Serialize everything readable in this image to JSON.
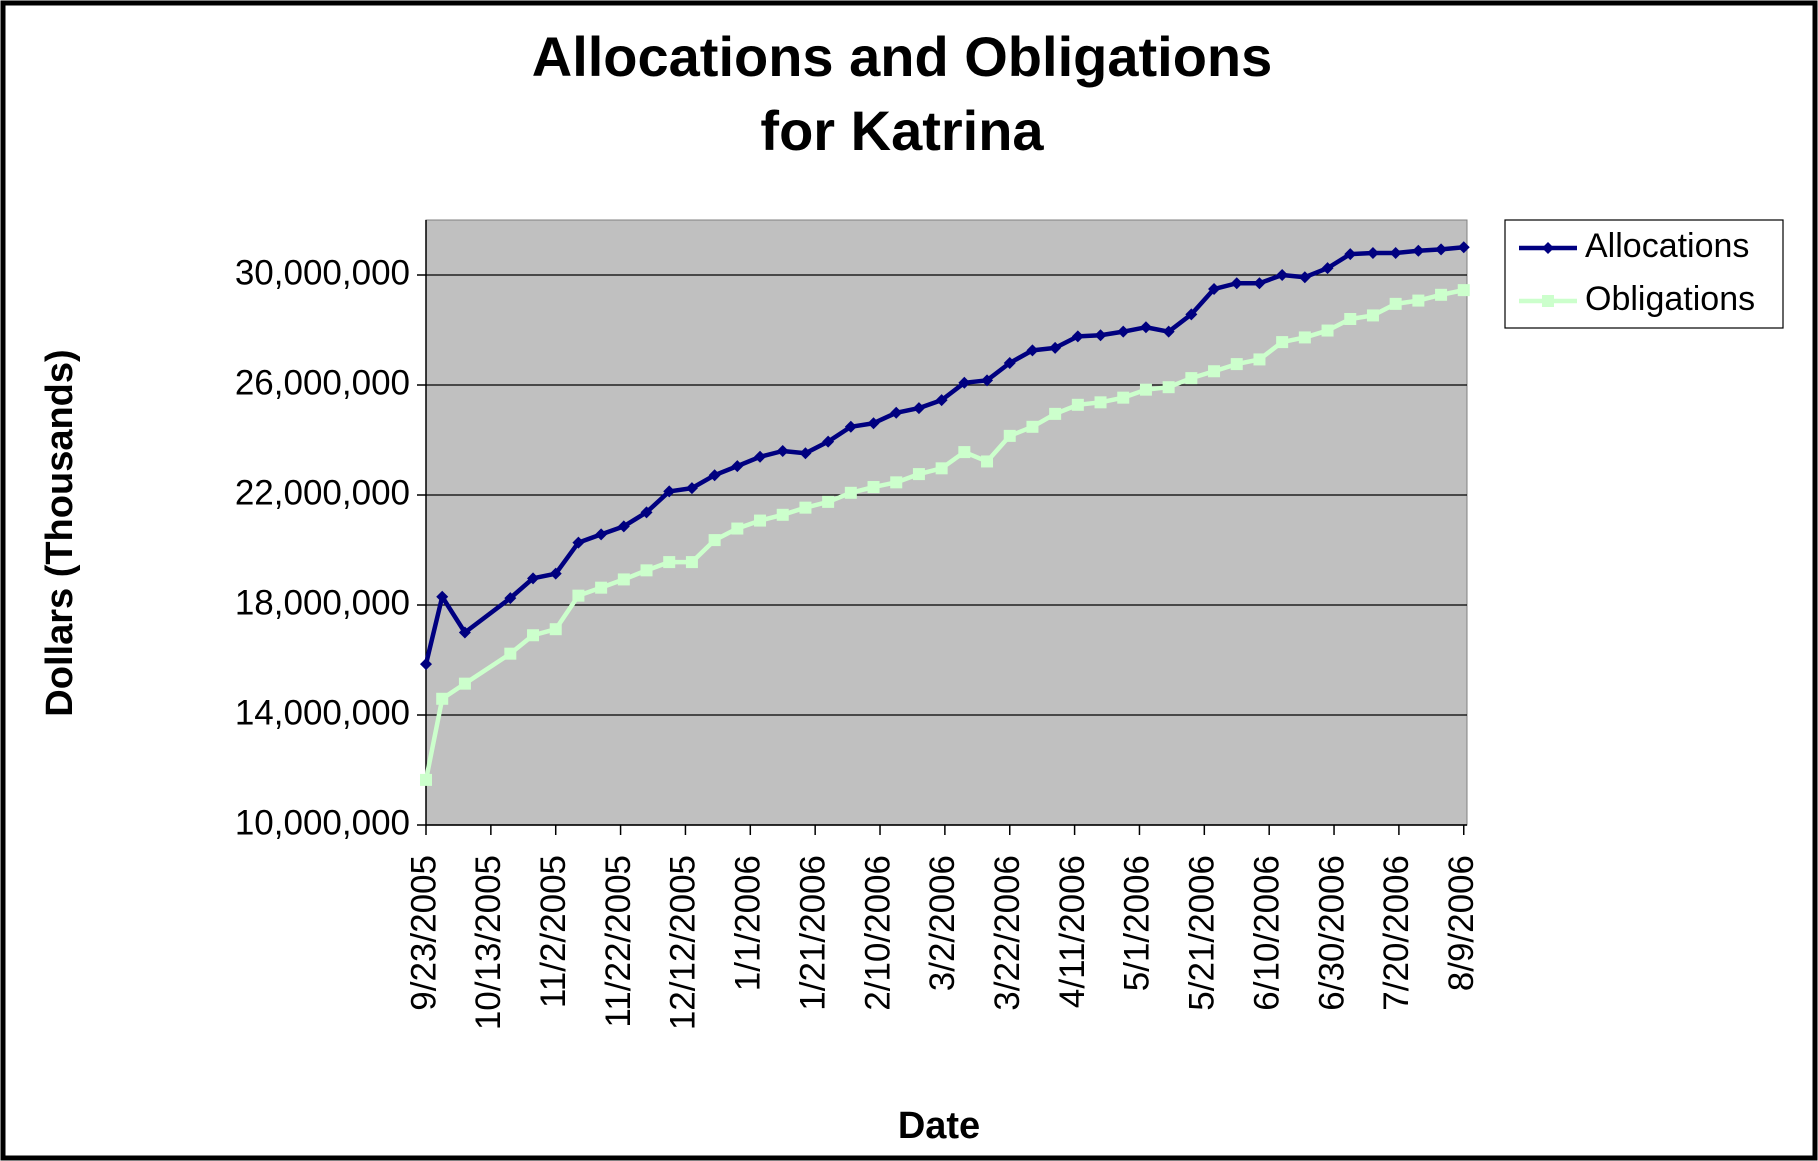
{
  "chart_data": {
    "type": "line",
    "title": [
      "Allocations and Obligations",
      "for Katrina"
    ],
    "x_label": "Date",
    "y_label": "Dollars (Thousands)",
    "x": [
      "9/23/2005",
      "9/28/2005",
      "10/5/2005",
      "10/19/2005",
      "10/26/2005",
      "11/2/2005",
      "11/9/2005",
      "11/16/2005",
      "11/23/2005",
      "11/30/2005",
      "12/7/2005",
      "12/14/2005",
      "12/21/2005",
      "12/28/2005",
      "1/4/2006",
      "1/11/2006",
      "1/18/2006",
      "1/25/2006",
      "2/1/2006",
      "2/8/2006",
      "2/15/2006",
      "2/22/2006",
      "3/1/2006",
      "3/8/2006",
      "3/15/2006",
      "3/22/2006",
      "3/29/2006",
      "4/5/2006",
      "4/12/2006",
      "4/19/2006",
      "4/26/2006",
      "5/3/2006",
      "5/10/2006",
      "5/17/2006",
      "5/24/2006",
      "5/31/2006",
      "6/7/2006",
      "6/14/2006",
      "6/21/2006",
      "6/28/2006",
      "7/5/2006",
      "7/12/2006",
      "7/19/2006",
      "7/26/2006",
      "8/2/2006",
      "8/9/2006"
    ],
    "series": [
      {
        "name": "Allocations",
        "color": "#000080",
        "marker": "diamond",
        "values": [
          15850000,
          18300000,
          17000000,
          18250000,
          18970000,
          19140000,
          20270000,
          20570000,
          20860000,
          21370000,
          22130000,
          22250000,
          22720000,
          23050000,
          23390000,
          23600000,
          23520000,
          23940000,
          24480000,
          24610000,
          24990000,
          25160000,
          25450000,
          26080000,
          26170000,
          26800000,
          27260000,
          27350000,
          27770000,
          27810000,
          27940000,
          28100000,
          27940000,
          28570000,
          29490000,
          29700000,
          29700000,
          30000000,
          29920000,
          30250000,
          30760000,
          30800000,
          30800000,
          30880000,
          30930000,
          31010000
        ]
      },
      {
        "name": "Obligations",
        "color": "#ccffcc",
        "marker": "square",
        "values": [
          11640000,
          14590000,
          15140000,
          16230000,
          16900000,
          17120000,
          18340000,
          18630000,
          18930000,
          19260000,
          19560000,
          19560000,
          20360000,
          20780000,
          21070000,
          21280000,
          21540000,
          21750000,
          22080000,
          22290000,
          22460000,
          22760000,
          22970000,
          23560000,
          23220000,
          24150000,
          24480000,
          24950000,
          25280000,
          25370000,
          25540000,
          25830000,
          25920000,
          26250000,
          26500000,
          26760000,
          26930000,
          27560000,
          27730000,
          27980000,
          28400000,
          28530000,
          28950000,
          29070000,
          29280000,
          29450000
        ]
      }
    ],
    "xlim": [
      "9/23/2005",
      "8/10/2006"
    ],
    "xticks": [
      "9/23/2005",
      "10/13/2005",
      "11/2/2005",
      "11/22/2005",
      "12/12/2005",
      "1/1/2006",
      "1/21/2006",
      "2/10/2006",
      "3/2/2006",
      "3/22/2006",
      "4/11/2006",
      "5/1/2006",
      "5/21/2006",
      "6/10/2006",
      "6/30/2006",
      "7/20/2006",
      "8/9/2006"
    ],
    "ylim": [
      10000000,
      32000000
    ],
    "yticks": [
      {
        "value": 10000000,
        "label": "10,000,000"
      },
      {
        "value": 14000000,
        "label": "14,000,000"
      },
      {
        "value": 18000000,
        "label": "18,000,000"
      },
      {
        "value": 22000000,
        "label": "22,000,000"
      },
      {
        "value": 26000000,
        "label": "26,000,000"
      },
      {
        "value": 30000000,
        "label": "30,000,000"
      }
    ],
    "grid": true,
    "plot_background": "#c0c0c0",
    "legend": "right"
  }
}
